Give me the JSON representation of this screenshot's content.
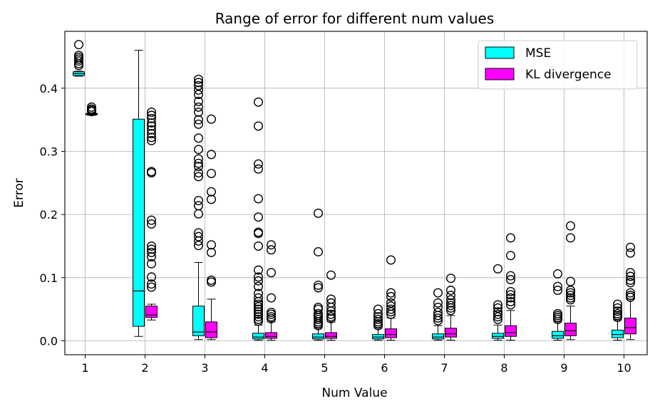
{
  "chart_data": {
    "type": "boxplot",
    "title": "Range of error for different num values",
    "xlabel": "Num Value",
    "ylabel": "Error",
    "categories": [
      "1",
      "2",
      "3",
      "4",
      "5",
      "6",
      "7",
      "8",
      "9",
      "10"
    ],
    "ylim": [
      -0.022,
      0.49
    ],
    "yticks": [
      0.0,
      0.1,
      0.2,
      0.3,
      0.4
    ],
    "ytick_labels": [
      "0.0",
      "0.1",
      "0.2",
      "0.3",
      "0.4"
    ],
    "grid": true,
    "legend_position": "top-right",
    "series": [
      {
        "name": "MSE",
        "color": "#00ffff",
        "stats": [
          {
            "whislo": 0.419,
            "q1": 0.42,
            "med": 0.423,
            "q3": 0.426,
            "whishi": 0.427,
            "fliers": [
              0.469,
              0.452,
              0.449,
              0.446,
              0.443,
              0.439,
              0.436
            ]
          },
          {
            "whislo": 0.007,
            "q1": 0.023,
            "med": 0.079,
            "q3": 0.351,
            "whishi": 0.46,
            "fliers": []
          },
          {
            "whislo": 0.002,
            "q1": 0.008,
            "med": 0.014,
            "q3": 0.055,
            "whishi": 0.124,
            "fliers": [
              0.414,
              0.409,
              0.404,
              0.397,
              0.39,
              0.379,
              0.37,
              0.362,
              0.35,
              0.343,
              0.321,
              0.303,
              0.288,
              0.281,
              0.276,
              0.266,
              0.26,
              0.222,
              0.214,
              0.201,
              0.171,
              0.165,
              0.158,
              0.151
            ]
          },
          {
            "whislo": 0.001,
            "q1": 0.003,
            "med": 0.006,
            "q3": 0.012,
            "whishi": 0.025,
            "fliers": [
              0.378,
              0.34,
              0.28,
              0.272,
              0.225,
              0.196,
              0.172,
              0.17,
              0.15,
              0.112,
              0.101,
              0.095,
              0.086,
              0.075,
              0.068,
              0.062,
              0.058,
              0.054,
              0.05,
              0.046,
              0.042,
              0.038,
              0.034,
              0.031
            ]
          },
          {
            "whislo": 0.001,
            "q1": 0.003,
            "med": 0.006,
            "q3": 0.011,
            "whishi": 0.02,
            "fliers": [
              0.202,
              0.141,
              0.088,
              0.084,
              0.053,
              0.05,
              0.043,
              0.04,
              0.037,
              0.034,
              0.03,
              0.027,
              0.024
            ]
          },
          {
            "whislo": 0.001,
            "q1": 0.003,
            "med": 0.006,
            "q3": 0.01,
            "whishi": 0.02,
            "fliers": [
              0.05,
              0.043,
              0.038,
              0.034,
              0.03,
              0.027,
              0.024
            ]
          },
          {
            "whislo": 0.001,
            "q1": 0.003,
            "med": 0.006,
            "q3": 0.011,
            "whishi": 0.024,
            "fliers": [
              0.076,
              0.06,
              0.053,
              0.045,
              0.04,
              0.036,
              0.032
            ]
          },
          {
            "whislo": 0.001,
            "q1": 0.004,
            "med": 0.007,
            "q3": 0.012,
            "whishi": 0.025,
            "fliers": [
              0.114,
              0.057,
              0.052,
              0.046,
              0.042,
              0.038,
              0.034
            ]
          },
          {
            "whislo": 0.001,
            "q1": 0.004,
            "med": 0.008,
            "q3": 0.015,
            "whishi": 0.03,
            "fliers": [
              0.106,
              0.086,
              0.08,
              0.043,
              0.04,
              0.037,
              0.034
            ]
          },
          {
            "whislo": 0.001,
            "q1": 0.005,
            "med": 0.01,
            "q3": 0.017,
            "whishi": 0.033,
            "fliers": [
              0.058,
              0.052,
              0.047,
              0.043,
              0.04,
              0.037
            ]
          }
        ]
      },
      {
        "name": "KL divergence",
        "color": "#ff00ff",
        "stats": [
          {
            "whislo": 0.357,
            "q1": 0.358,
            "med": 0.359,
            "q3": 0.36,
            "whishi": 0.361,
            "fliers": [
              0.37,
              0.367,
              0.365,
              0.363
            ]
          },
          {
            "whislo": 0.033,
            "q1": 0.037,
            "med": 0.041,
            "q3": 0.055,
            "whishi": 0.058,
            "fliers": [
              0.362,
              0.357,
              0.352,
              0.345,
              0.34,
              0.334,
              0.328,
              0.322,
              0.317,
              0.268,
              0.266,
              0.191,
              0.185,
              0.15,
              0.145,
              0.14,
              0.133,
              0.122,
              0.101,
              0.09,
              0.085
            ]
          },
          {
            "whislo": 0.002,
            "q1": 0.005,
            "med": 0.014,
            "q3": 0.03,
            "whishi": 0.066,
            "fliers": [
              0.351,
              0.295,
              0.265,
              0.236,
              0.224,
              0.152,
              0.14,
              0.096,
              0.093
            ]
          },
          {
            "whislo": 0.001,
            "q1": 0.004,
            "med": 0.007,
            "q3": 0.013,
            "whishi": 0.03,
            "fliers": [
              0.152,
              0.144,
              0.108,
              0.068,
              0.045,
              0.042,
              0.038,
              0.035
            ]
          },
          {
            "whislo": 0.001,
            "q1": 0.004,
            "med": 0.007,
            "q3": 0.013,
            "whishi": 0.03,
            "fliers": [
              0.104,
              0.066,
              0.06,
              0.053,
              0.047,
              0.042,
              0.038,
              0.035
            ]
          },
          {
            "whislo": 0.001,
            "q1": 0.005,
            "med": 0.01,
            "q3": 0.019,
            "whishi": 0.036,
            "fliers": [
              0.128,
              0.076,
              0.07,
              0.06,
              0.055,
              0.05,
              0.046,
              0.042
            ]
          },
          {
            "whislo": 0.001,
            "q1": 0.006,
            "med": 0.011,
            "q3": 0.02,
            "whishi": 0.04,
            "fliers": [
              0.099,
              0.08,
              0.072,
              0.065,
              0.06,
              0.056,
              0.052,
              0.048
            ]
          },
          {
            "whislo": 0.001,
            "q1": 0.007,
            "med": 0.013,
            "q3": 0.024,
            "whishi": 0.048,
            "fliers": [
              0.163,
              0.135,
              0.103,
              0.097,
              0.078,
              0.073,
              0.068,
              0.062,
              0.057
            ]
          },
          {
            "whislo": 0.002,
            "q1": 0.008,
            "med": 0.016,
            "q3": 0.028,
            "whishi": 0.055,
            "fliers": [
              0.182,
              0.163,
              0.094,
              0.08,
              0.076,
              0.072,
              0.068,
              0.065
            ]
          },
          {
            "whislo": 0.002,
            "q1": 0.011,
            "med": 0.021,
            "q3": 0.036,
            "whishi": 0.066,
            "fliers": [
              0.148,
              0.139,
              0.108,
              0.102,
              0.096,
              0.092,
              0.076,
              0.072,
              0.069
            ]
          }
        ]
      }
    ]
  }
}
